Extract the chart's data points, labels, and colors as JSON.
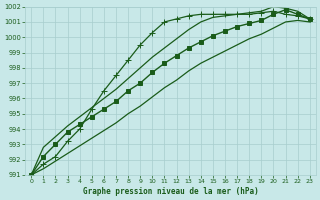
{
  "title": "Graphe pression niveau de la mer (hPa)",
  "background_color": "#c8e8e8",
  "grid_color": "#a8cece",
  "line_color": "#1a5c1a",
  "xlim": [
    0,
    23
  ],
  "ylim": [
    991,
    1002
  ],
  "xticks": [
    0,
    1,
    2,
    3,
    4,
    5,
    6,
    7,
    8,
    9,
    10,
    11,
    12,
    13,
    14,
    15,
    16,
    17,
    18,
    19,
    20,
    21,
    22,
    23
  ],
  "yticks": [
    991,
    992,
    993,
    994,
    995,
    996,
    997,
    998,
    999,
    1000,
    1001,
    1002
  ],
  "series": [
    {
      "x": [
        0,
        1,
        2,
        3,
        4,
        5,
        6,
        7,
        8,
        9,
        10,
        11,
        12,
        13,
        14,
        15,
        16,
        17,
        18,
        19,
        20,
        21,
        22,
        23
      ],
      "y": [
        991.0,
        991.7,
        992.2,
        993.2,
        994.0,
        995.3,
        996.5,
        997.5,
        998.5,
        999.5,
        1000.3,
        1001.0,
        1001.2,
        1001.4,
        1001.5,
        1001.5,
        1001.5,
        1001.5,
        1001.5,
        1001.6,
        1001.7,
        1001.5,
        1001.4,
        1001.2
      ],
      "marker": "+",
      "markersize": 4,
      "lw": 0.9
    },
    {
      "x": [
        0,
        1,
        2,
        3,
        4,
        5,
        6,
        7,
        8,
        9,
        10,
        11,
        12,
        13,
        14,
        15,
        16,
        17,
        18,
        19,
        20,
        21,
        22,
        23
      ],
      "y": [
        991.0,
        991.4,
        991.9,
        992.4,
        992.9,
        993.4,
        993.9,
        994.4,
        995.0,
        995.5,
        996.1,
        996.7,
        997.2,
        997.8,
        998.3,
        998.7,
        999.1,
        999.5,
        999.9,
        1000.2,
        1000.6,
        1001.0,
        1001.1,
        1001.0
      ],
      "marker": null,
      "lw": 0.9
    },
    {
      "x": [
        0,
        1,
        2,
        3,
        4,
        5,
        6,
        7,
        8,
        9,
        10,
        11,
        12,
        13,
        14,
        15,
        16,
        17,
        18,
        19,
        20,
        21,
        22,
        23
      ],
      "y": [
        991.0,
        992.2,
        993.0,
        993.8,
        994.3,
        994.8,
        995.3,
        995.8,
        996.5,
        997.0,
        997.7,
        998.3,
        998.8,
        999.3,
        999.7,
        1000.1,
        1000.4,
        1000.7,
        1000.9,
        1001.1,
        1001.5,
        1001.8,
        1001.5,
        1001.2
      ],
      "marker": "s",
      "markersize": 2.2,
      "lw": 1.0
    },
    {
      "x": [
        0,
        1,
        2,
        3,
        4,
        5,
        6,
        7,
        8,
        9,
        10,
        11,
        12,
        13,
        14,
        15,
        16,
        17,
        18,
        19,
        20,
        21,
        22,
        23
      ],
      "y": [
        991.0,
        992.8,
        993.5,
        994.2,
        994.8,
        995.4,
        996.0,
        996.6,
        997.3,
        998.0,
        998.7,
        999.3,
        999.9,
        1000.5,
        1001.0,
        1001.3,
        1001.4,
        1001.5,
        1001.6,
        1001.7,
        1002.0,
        1001.9,
        1001.7,
        1001.2
      ],
      "marker": null,
      "lw": 0.9
    }
  ]
}
